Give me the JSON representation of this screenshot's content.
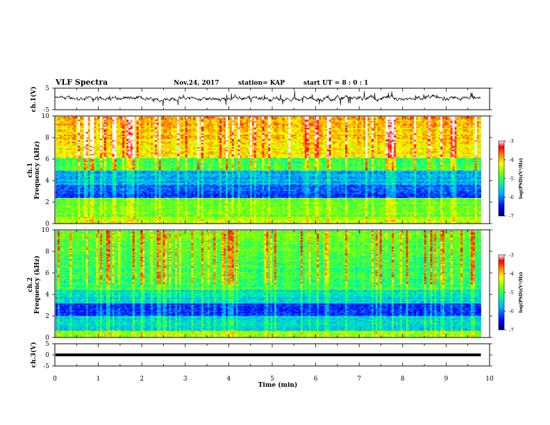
{
  "header": {
    "title": "VLF Spectra",
    "date": "Nov.24, 2017",
    "station": "station= KAP",
    "start": "start UT =  8 : 0 : 1"
  },
  "chart_data": [
    {
      "type": "line",
      "name": "ch1-waveform",
      "ylabel": "ch.1(V)",
      "ylim": [
        -5,
        5
      ],
      "yticks": [
        "5",
        "-5"
      ],
      "xlim": [
        0,
        10
      ],
      "x_unit": "min",
      "description_values": {
        "baseline": 0.3,
        "amplitude": 2.0,
        "x_end": 9.8
      }
    },
    {
      "type": "heatmap",
      "name": "ch1-spectrogram",
      "ylabel": "ch.1",
      "ylabel2": "Frequency (kHz)",
      "ylim": [
        0,
        10
      ],
      "yticks": [
        "0",
        "2",
        "4",
        "6",
        "8",
        "10"
      ],
      "xlim": [
        0,
        10
      ],
      "x_end": 9.8,
      "colorbar": {
        "label": "log(PSD)(V²/Hz)",
        "range": [
          -7,
          -3
        ],
        "ticks": [
          "-3",
          "-4",
          "-5",
          "-6",
          "-7"
        ]
      }
    },
    {
      "type": "heatmap",
      "name": "ch2-spectrogram",
      "ylabel": "ch.2",
      "ylabel2": "Frequency (kHz)",
      "ylim": [
        0,
        10
      ],
      "yticks": [
        "0",
        "2",
        "4",
        "6",
        "8",
        "10"
      ],
      "xlim": [
        0,
        10
      ],
      "x_end": 9.8,
      "colorbar": {
        "label": "log(PSD)(V²/Hz)",
        "range": [
          -7,
          -3
        ],
        "ticks": [
          "-3",
          "-4",
          "-5",
          "-6",
          "-7"
        ]
      }
    },
    {
      "type": "line",
      "name": "ch3-waveform",
      "ylabel": "ch.3(V)",
      "ylim": [
        -5,
        5
      ],
      "yticks": [
        "5",
        "0",
        "-5"
      ],
      "xlim": [
        0,
        10
      ],
      "x_end": 9.8,
      "constant_value": 0
    }
  ],
  "xaxis": {
    "label": "Time (min)",
    "ticks": [
      "0",
      "1",
      "2",
      "3",
      "4",
      "5",
      "6",
      "7",
      "8",
      "9",
      "10"
    ]
  },
  "colors": {
    "colormap": [
      "#000080",
      "#0000ff",
      "#00c0ff",
      "#00ff80",
      "#80ff00",
      "#ffff00",
      "#ff8000",
      "#ff0000",
      "#ffffff"
    ]
  }
}
